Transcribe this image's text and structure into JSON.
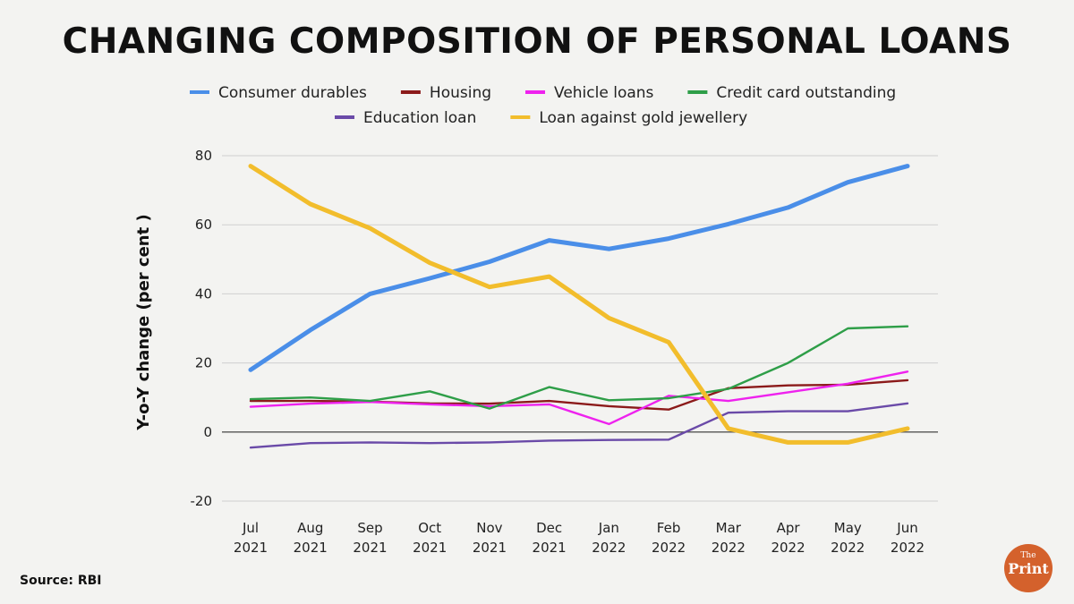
{
  "title": "CHANGING COMPOSITION OF PERSONAL LOANS",
  "source": "Source: RBI",
  "logo": {
    "the": "The",
    "print": "Print"
  },
  "chart_data": {
    "type": "line",
    "title": "CHANGING COMPOSITION OF PERSONAL LOANS",
    "xlabel": "",
    "ylabel": "Y-o-Y change (per cent )",
    "ylim": [
      -20,
      80
    ],
    "yticks": [
      80,
      60,
      40,
      20,
      0,
      -20
    ],
    "grid": true,
    "legend_position": "top",
    "categories": [
      [
        "Jul",
        "2021"
      ],
      [
        "Aug",
        "2021"
      ],
      [
        "Sep",
        "2021"
      ],
      [
        "Oct",
        "2021"
      ],
      [
        "Nov",
        "2021"
      ],
      [
        "Dec",
        "2021"
      ],
      [
        "Jan",
        "2022"
      ],
      [
        "Feb",
        "2022"
      ],
      [
        "Mar",
        "2022"
      ],
      [
        "Apr",
        "2022"
      ],
      [
        "May",
        "2022"
      ],
      [
        "Jun",
        "2022"
      ]
    ],
    "series": [
      {
        "name": "Consumer durables",
        "color": "#4a8ee8",
        "values": [
          18,
          29.5,
          40,
          44.5,
          49.3,
          55.5,
          53,
          56,
          60.2,
          65,
          72.3,
          77
        ]
      },
      {
        "name": "Housing",
        "color": "#8b1a1a",
        "values": [
          9,
          9,
          8.8,
          8.3,
          8.2,
          9,
          7.5,
          6.5,
          12.7,
          13.5,
          13.7,
          15
        ]
      },
      {
        "name": "Vehicle loans",
        "color": "#ee22ee",
        "values": [
          7.3,
          8.2,
          8.7,
          8,
          7.5,
          8,
          2.3,
          10.5,
          9,
          11.5,
          14,
          17.5
        ]
      },
      {
        "name": "Credit card outstanding",
        "color": "#2e9e48",
        "values": [
          9.5,
          10,
          9,
          11.8,
          6.8,
          13,
          9.2,
          9.8,
          12.5,
          20,
          30,
          30.6
        ]
      },
      {
        "name": "Education loan",
        "color": "#6a4aa8",
        "values": [
          -4.5,
          -3.2,
          -3,
          -3.2,
          -3,
          -2.5,
          -2.3,
          -2.2,
          5.6,
          6,
          6,
          8.3
        ]
      },
      {
        "name": "Loan against gold jewellery",
        "color": "#f2bd2c",
        "values": [
          77,
          66,
          59,
          49,
          42,
          45,
          33,
          26,
          1,
          -3,
          -3,
          1
        ]
      }
    ]
  }
}
